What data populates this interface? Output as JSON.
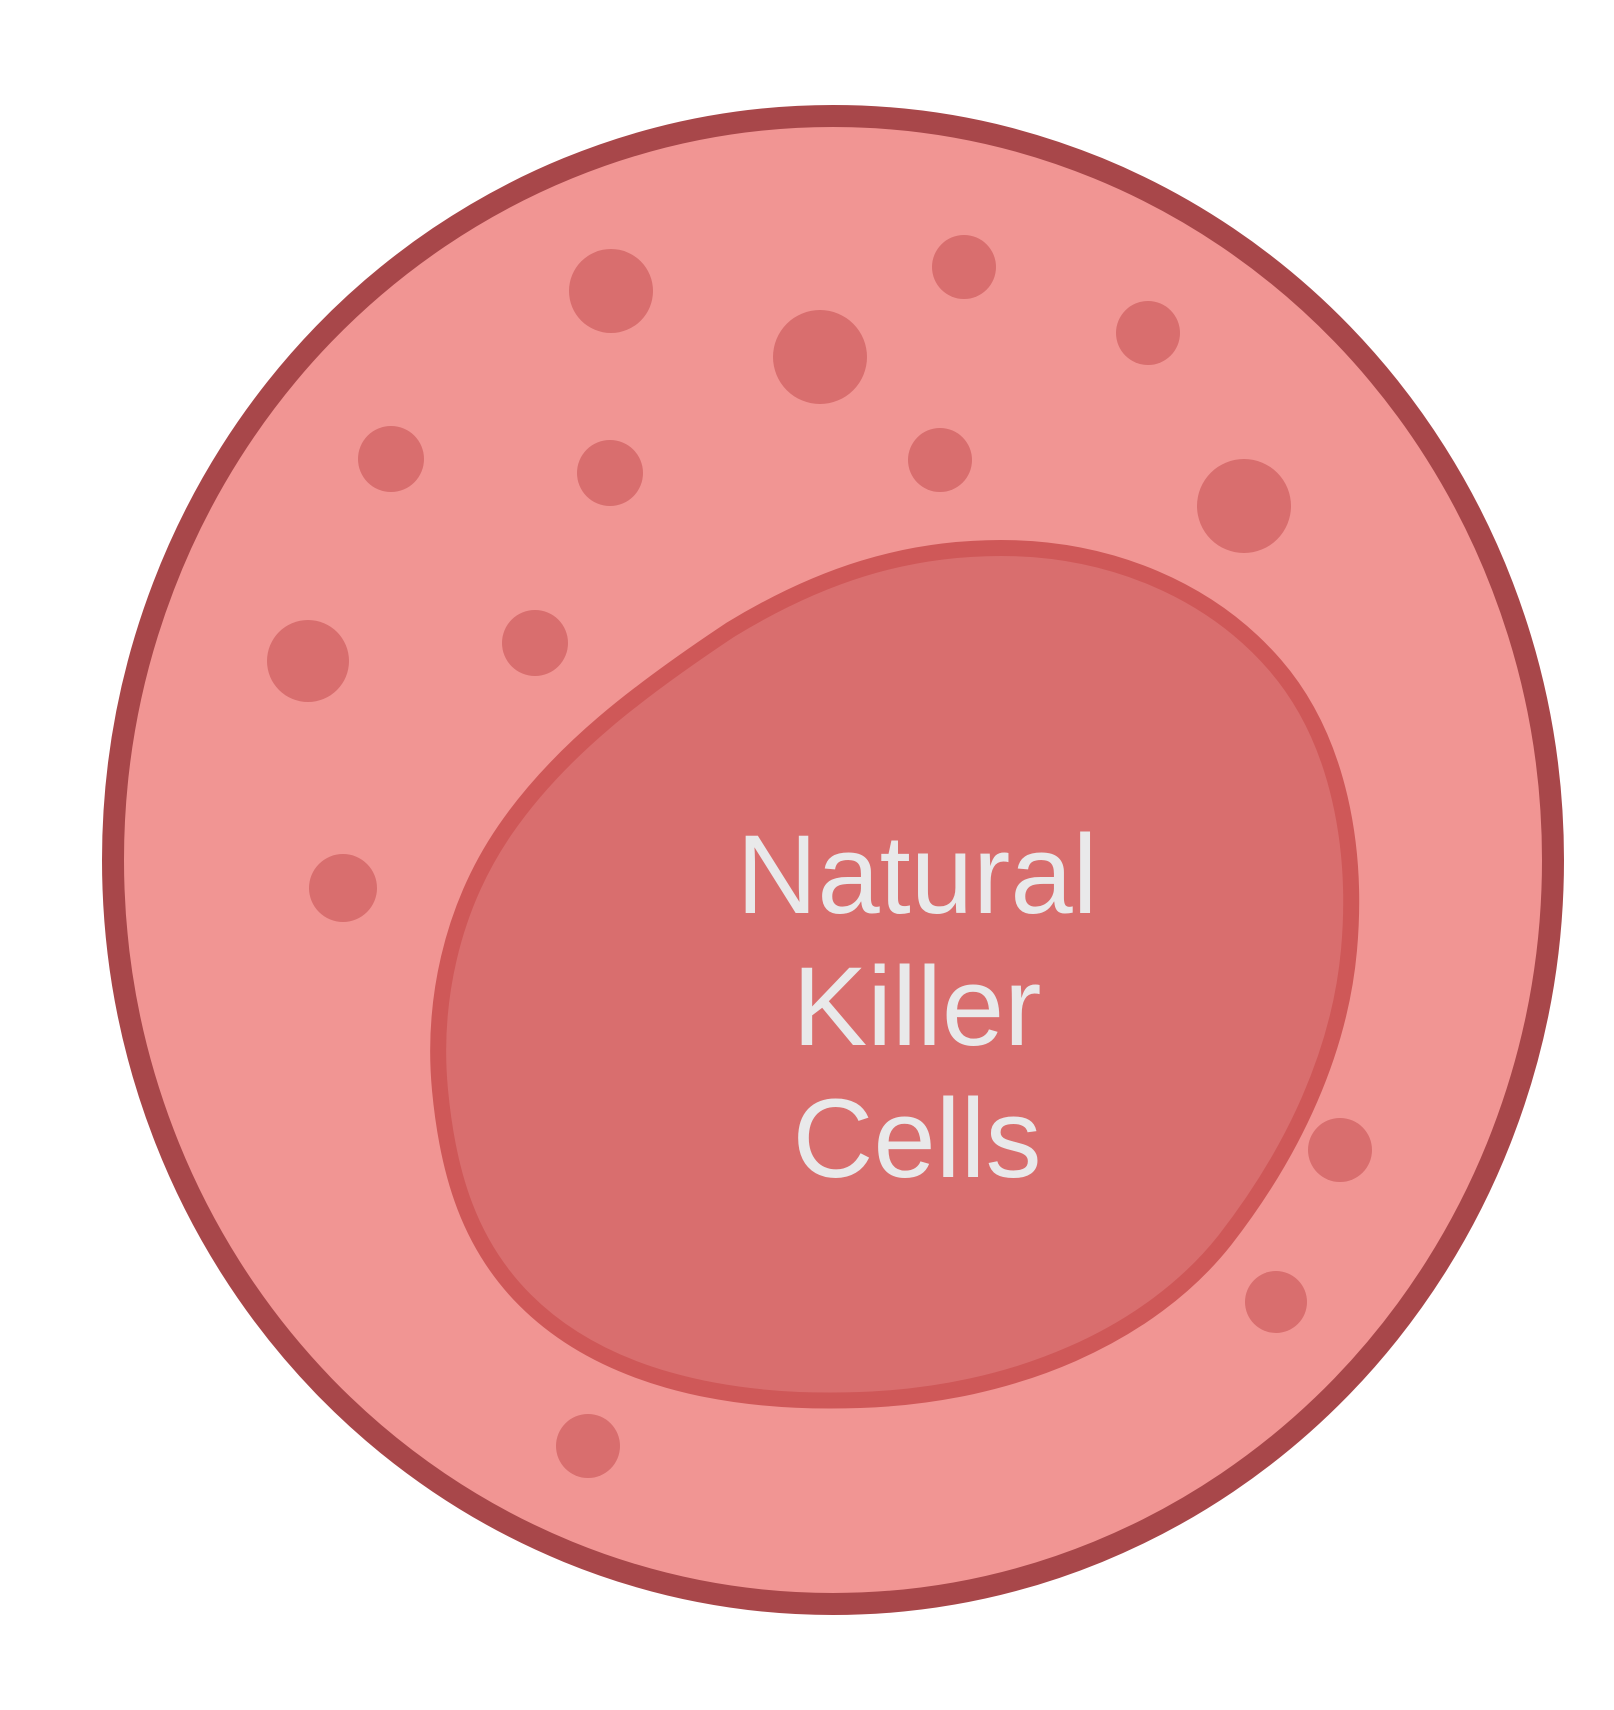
{
  "label": {
    "line1": "Natural",
    "line2": "Killer",
    "line3": "Cells"
  },
  "colors": {
    "background": "#ffffff",
    "membrane_stroke": "#a8474a",
    "cytoplasm_fill": "#f19593",
    "nucleus_fill": "#d96e6e",
    "nucleus_stroke": "#cf5858",
    "granule_fill": "#d96e6e",
    "label_text": "#e9e9ea"
  },
  "icons": {
    "cell": "nk-cell-icon",
    "nucleus": "nucleus-icon",
    "granule": "granule-icon"
  }
}
